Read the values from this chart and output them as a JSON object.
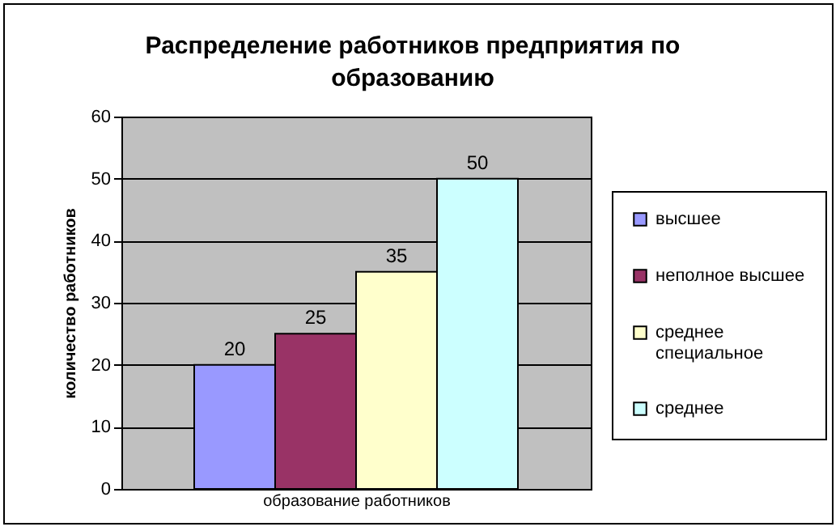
{
  "chart_data": {
    "type": "bar",
    "title": "Распределение работников предприятия по образованию",
    "xlabel": "образование работников",
    "ylabel": "количество работников",
    "categories": [
      null
    ],
    "series": [
      {
        "name": "высшее",
        "color": "#9999ff",
        "values": [
          20
        ]
      },
      {
        "name": "неполное высшее",
        "color": "#993366",
        "values": [
          25
        ]
      },
      {
        "name": "среднее специальное",
        "color": "#ffffcc",
        "values": [
          35
        ]
      },
      {
        "name": "среднее",
        "color": "#ccffff",
        "values": [
          50
        ]
      }
    ],
    "ylim": [
      0,
      60
    ],
    "yticks": [
      0,
      10,
      20,
      30,
      40,
      50,
      60
    ],
    "grid": "y",
    "legend": "right",
    "data_labels": true
  }
}
